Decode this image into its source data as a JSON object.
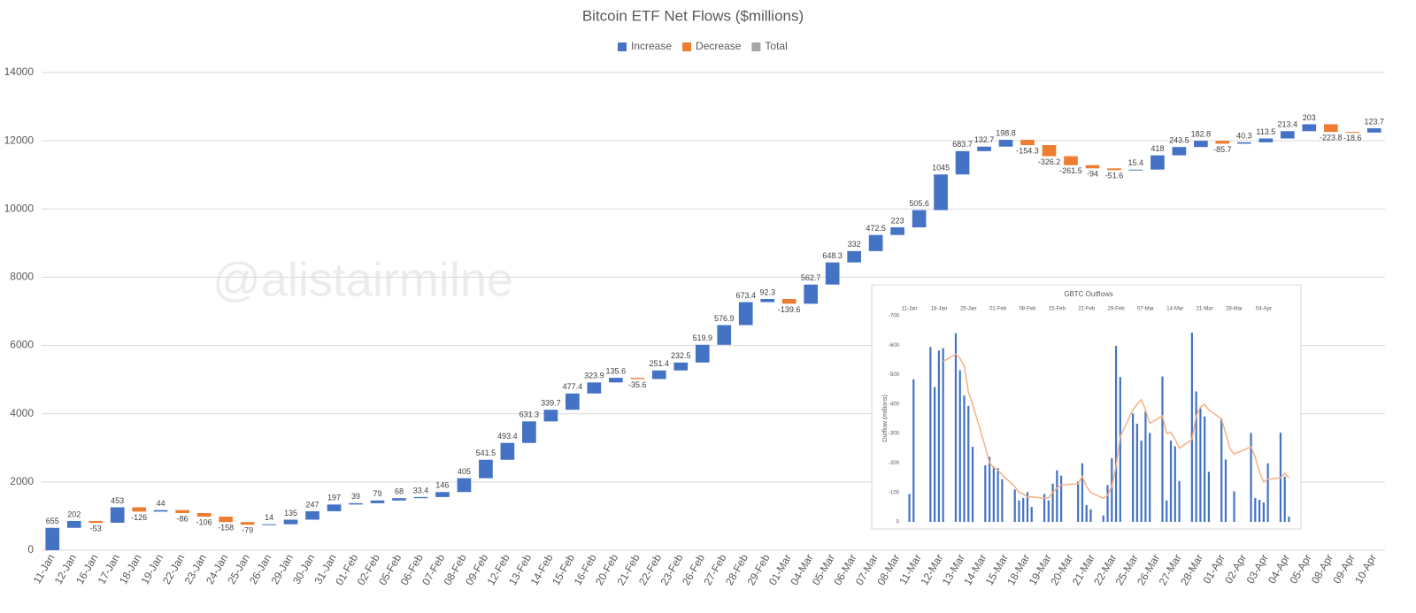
{
  "chart_data": [
    {
      "type": "waterfall",
      "title": "Bitcoin ETF Net Flows ($millions)",
      "watermark": "@alistairmilne",
      "legend": [
        {
          "name": "Increase",
          "color": "#4472c4"
        },
        {
          "name": "Decrease",
          "color": "#ed7d31"
        },
        {
          "name": "Total",
          "color": "#a5a5a5"
        }
      ],
      "categories": [
        "11-Jan",
        "12-Jan",
        "16-Jan",
        "17-Jan",
        "18-Jan",
        "19-Jan",
        "22-Jan",
        "23-Jan",
        "24-Jan",
        "25-Jan",
        "26-Jan",
        "29-Jan",
        "30-Jan",
        "31-Jan",
        "01-Feb",
        "02-Feb",
        "05-Feb",
        "06-Feb",
        "07-Feb",
        "08-Feb",
        "09-Feb",
        "12-Feb",
        "13-Feb",
        "14-Feb",
        "15-Feb",
        "16-Feb",
        "20-Feb",
        "21-Feb",
        "22-Feb",
        "23-Feb",
        "26-Feb",
        "27-Feb",
        "28-Feb",
        "29-Feb",
        "01-Mar",
        "04-Mar",
        "05-Mar",
        "06-Mar",
        "07-Mar",
        "08-Mar",
        "11-Mar",
        "12-Mar",
        "13-Mar",
        "14-Mar",
        "15-Mar",
        "18-Mar",
        "19-Mar",
        "20-Mar",
        "21-Mar",
        "22-Mar",
        "25-Mar",
        "26-Mar",
        "27-Mar",
        "28-Mar",
        "01-Apr",
        "02-Apr",
        "03-Apr",
        "04-Apr",
        "05-Apr",
        "08-Apr",
        "09-Apr",
        "10-Apr"
      ],
      "values": [
        655,
        202,
        -53,
        453,
        -126,
        44,
        -86,
        -106,
        -158,
        -79,
        14,
        135,
        247,
        197,
        39,
        79,
        68,
        33.4,
        146,
        405,
        541.5,
        493.4,
        631.3,
        339.7,
        477.4,
        323.9,
        135.6,
        -35.6,
        251.4,
        232.5,
        519.9,
        576.9,
        673.4,
        92.3,
        -139.6,
        562.7,
        648.3,
        332,
        472.5,
        223,
        505.6,
        1045,
        683.7,
        132.7,
        198.8,
        -154.3,
        -326.2,
        -261.5,
        -94,
        -51.6,
        15.4,
        418,
        243.5,
        182.8,
        -85.7,
        40.3,
        113.5,
        213.4,
        203,
        -223.8,
        -18.6,
        123.7
      ],
      "ylim": [
        0,
        14000
      ],
      "yticks": [
        0,
        2000,
        4000,
        6000,
        8000,
        10000,
        12000,
        14000
      ],
      "grid": true
    },
    {
      "type": "bar",
      "title": "GBTC Outflows",
      "y_label": "Outflow (millions)",
      "x": [
        "11-Jan",
        "12-Jan",
        "16-Jan",
        "17-Jan",
        "18-Jan",
        "19-Jan",
        "22-Jan",
        "23-Jan",
        "24-Jan",
        "25-Jan",
        "26-Jan",
        "29-Jan",
        "30-Jan",
        "31-Jan",
        "01-Feb",
        "02-Feb",
        "05-Feb",
        "06-Feb",
        "07-Feb",
        "08-Feb",
        "09-Feb",
        "12-Feb",
        "13-Feb",
        "14-Feb",
        "15-Feb",
        "16-Feb",
        "20-Feb",
        "21-Feb",
        "22-Feb",
        "23-Feb",
        "26-Feb",
        "27-Feb",
        "28-Feb",
        "29-Feb",
        "01-Mar",
        "04-Mar",
        "05-Mar",
        "06-Mar",
        "07-Mar",
        "08-Mar",
        "11-Mar",
        "12-Mar",
        "13-Mar",
        "14-Mar",
        "15-Mar",
        "18-Mar",
        "19-Mar",
        "20-Mar",
        "21-Mar",
        "22-Mar",
        "25-Mar",
        "26-Mar",
        "27-Mar",
        "28-Mar",
        "01-Apr",
        "02-Apr",
        "03-Apr",
        "04-Apr",
        "05-Apr",
        "08-Apr",
        "09-Apr",
        "10-Apr"
      ],
      "series": [
        {
          "type": "bar",
          "color": "#4472c4",
          "values": [
            -95,
            -484,
            -594,
            -458,
            -582,
            -590,
            -641,
            -515,
            -429,
            -394,
            -255,
            -192,
            -221,
            -188,
            -182,
            -145,
            -110,
            -73,
            -81,
            -101,
            -51,
            -95,
            -73,
            -130,
            -175,
            -157,
            -137,
            -199,
            -57,
            -43,
            -22,
            -125,
            -216,
            -598,
            -492,
            -368,
            -333,
            -276,
            -375,
            -302,
            -494,
            -73,
            -276,
            -257,
            -139,
            -643,
            -443,
            -386,
            -358,
            -170,
            -350,
            -212,
            0,
            -104,
            -302,
            -81,
            -75,
            -66,
            -199,
            -303,
            -154,
            -18
          ]
        },
        {
          "type": "line",
          "color": "#f4b183",
          "values": [
            null,
            null,
            null,
            null,
            null,
            -545,
            -570,
            -555,
            -530,
            -440,
            -400,
            -255,
            -200,
            -185,
            -175,
            -160,
            -120,
            -100,
            -95,
            -85,
            -85,
            -80,
            -82,
            -100,
            -115,
            -125,
            -130,
            -155,
            -120,
            -100,
            -80,
            -90,
            -120,
            -190,
            -290,
            -380,
            -400,
            -415,
            -380,
            -335,
            -360,
            -300,
            -305,
            -280,
            -250,
            -280,
            -360,
            -390,
            -400,
            -380,
            -350,
            -300,
            -250,
            -230,
            -255,
            -220,
            -170,
            -135,
            -145,
            -150,
            -165,
            -150
          ]
        }
      ],
      "xlim": [
        "09-Jan",
        "12-Apr"
      ],
      "xticks": [
        "11-Jan",
        "18-Jan",
        "25-Jan",
        "01-Feb",
        "08-Feb",
        "15-Feb",
        "22-Feb",
        "29-Feb",
        "07-Mar",
        "14-Mar",
        "21-Mar",
        "28-Mar",
        "04-Apr"
      ],
      "ylim": [
        0,
        -700
      ],
      "yticks": [
        0,
        -100,
        -200,
        -300,
        -400,
        -500,
        -600,
        -700
      ]
    }
  ]
}
